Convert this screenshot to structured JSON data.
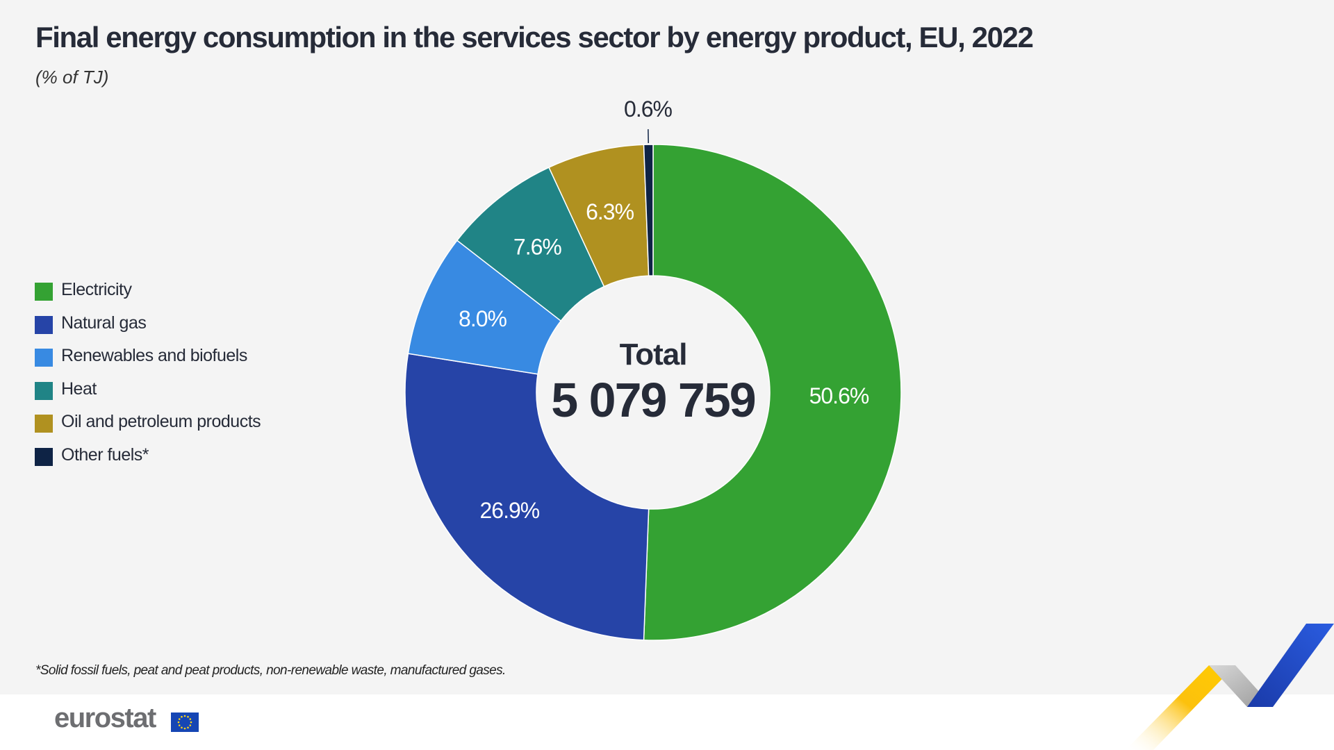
{
  "chart_data": {
    "type": "donut",
    "title": "Final energy consumption in the services sector by energy product, EU, 2022",
    "subtitle": "(% of TJ)",
    "center_label": "Total",
    "center_value": "5 079 759",
    "legend_position": "left",
    "slices": [
      {
        "name": "Electricity",
        "value": 50.6,
        "label": "50.6%",
        "color": "#34a233"
      },
      {
        "name": "Natural gas",
        "value": 26.9,
        "label": "26.9%",
        "color": "#2644a7"
      },
      {
        "name": "Renewables and biofuels",
        "value": 8.0,
        "label": "8.0%",
        "color": "#388ae2"
      },
      {
        "name": "Heat",
        "value": 7.6,
        "label": "7.6%",
        "color": "#208486"
      },
      {
        "name": "Oil and petroleum products",
        "value": 6.3,
        "label": "6.3%",
        "color": "#b09120"
      },
      {
        "name": "Other fuels*",
        "value": 0.6,
        "label": "0.6%",
        "color": "#0e2345"
      }
    ]
  },
  "footnote": "*Solid fossil fuels, peat and peat products, non-renewable waste, manufactured gases.",
  "brand": {
    "name": "eurostat"
  }
}
